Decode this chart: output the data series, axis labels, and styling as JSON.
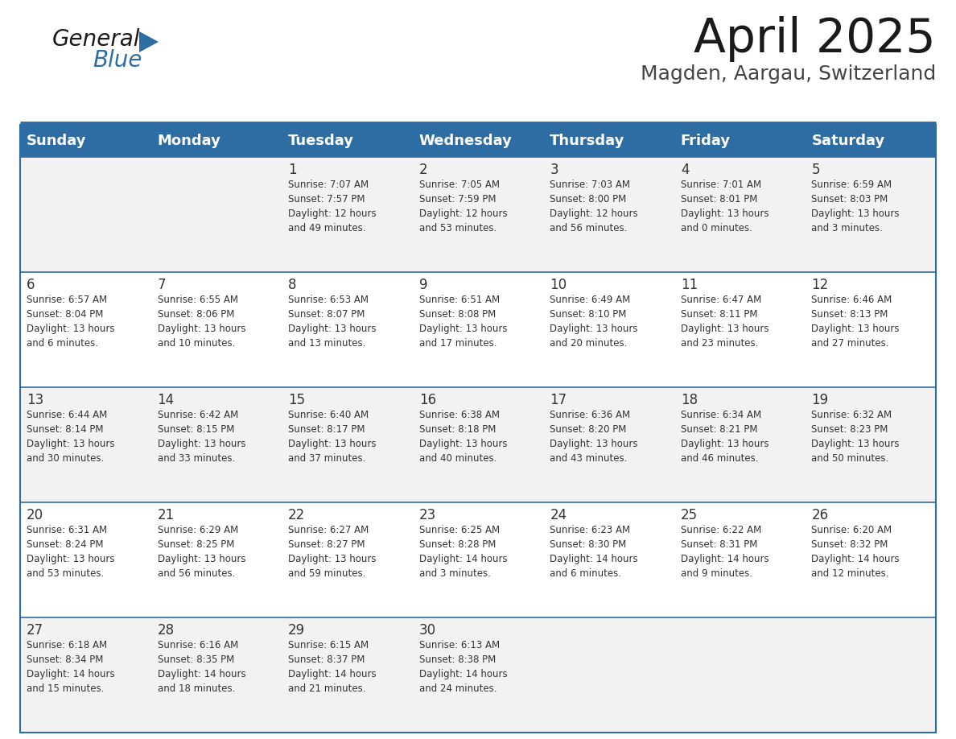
{
  "title": "April 2025",
  "subtitle": "Magden, Aargau, Switzerland",
  "header_bg_color": "#2e6da4",
  "header_text_color": "#ffffff",
  "row_bg_even": "#f2f2f2",
  "row_bg_odd": "#ffffff",
  "text_color": "#333333",
  "border_color": "#2e6da4",
  "day_headers": [
    "Sunday",
    "Monday",
    "Tuesday",
    "Wednesday",
    "Thursday",
    "Friday",
    "Saturday"
  ],
  "calendar_data": [
    [
      {
        "day": "",
        "sunrise": "",
        "sunset": "",
        "daylight": ""
      },
      {
        "day": "",
        "sunrise": "",
        "sunset": "",
        "daylight": ""
      },
      {
        "day": "1",
        "sunrise": "Sunrise: 7:07 AM",
        "sunset": "Sunset: 7:57 PM",
        "daylight": "Daylight: 12 hours\nand 49 minutes."
      },
      {
        "day": "2",
        "sunrise": "Sunrise: 7:05 AM",
        "sunset": "Sunset: 7:59 PM",
        "daylight": "Daylight: 12 hours\nand 53 minutes."
      },
      {
        "day": "3",
        "sunrise": "Sunrise: 7:03 AM",
        "sunset": "Sunset: 8:00 PM",
        "daylight": "Daylight: 12 hours\nand 56 minutes."
      },
      {
        "day": "4",
        "sunrise": "Sunrise: 7:01 AM",
        "sunset": "Sunset: 8:01 PM",
        "daylight": "Daylight: 13 hours\nand 0 minutes."
      },
      {
        "day": "5",
        "sunrise": "Sunrise: 6:59 AM",
        "sunset": "Sunset: 8:03 PM",
        "daylight": "Daylight: 13 hours\nand 3 minutes."
      }
    ],
    [
      {
        "day": "6",
        "sunrise": "Sunrise: 6:57 AM",
        "sunset": "Sunset: 8:04 PM",
        "daylight": "Daylight: 13 hours\nand 6 minutes."
      },
      {
        "day": "7",
        "sunrise": "Sunrise: 6:55 AM",
        "sunset": "Sunset: 8:06 PM",
        "daylight": "Daylight: 13 hours\nand 10 minutes."
      },
      {
        "day": "8",
        "sunrise": "Sunrise: 6:53 AM",
        "sunset": "Sunset: 8:07 PM",
        "daylight": "Daylight: 13 hours\nand 13 minutes."
      },
      {
        "day": "9",
        "sunrise": "Sunrise: 6:51 AM",
        "sunset": "Sunset: 8:08 PM",
        "daylight": "Daylight: 13 hours\nand 17 minutes."
      },
      {
        "day": "10",
        "sunrise": "Sunrise: 6:49 AM",
        "sunset": "Sunset: 8:10 PM",
        "daylight": "Daylight: 13 hours\nand 20 minutes."
      },
      {
        "day": "11",
        "sunrise": "Sunrise: 6:47 AM",
        "sunset": "Sunset: 8:11 PM",
        "daylight": "Daylight: 13 hours\nand 23 minutes."
      },
      {
        "day": "12",
        "sunrise": "Sunrise: 6:46 AM",
        "sunset": "Sunset: 8:13 PM",
        "daylight": "Daylight: 13 hours\nand 27 minutes."
      }
    ],
    [
      {
        "day": "13",
        "sunrise": "Sunrise: 6:44 AM",
        "sunset": "Sunset: 8:14 PM",
        "daylight": "Daylight: 13 hours\nand 30 minutes."
      },
      {
        "day": "14",
        "sunrise": "Sunrise: 6:42 AM",
        "sunset": "Sunset: 8:15 PM",
        "daylight": "Daylight: 13 hours\nand 33 minutes."
      },
      {
        "day": "15",
        "sunrise": "Sunrise: 6:40 AM",
        "sunset": "Sunset: 8:17 PM",
        "daylight": "Daylight: 13 hours\nand 37 minutes."
      },
      {
        "day": "16",
        "sunrise": "Sunrise: 6:38 AM",
        "sunset": "Sunset: 8:18 PM",
        "daylight": "Daylight: 13 hours\nand 40 minutes."
      },
      {
        "day": "17",
        "sunrise": "Sunrise: 6:36 AM",
        "sunset": "Sunset: 8:20 PM",
        "daylight": "Daylight: 13 hours\nand 43 minutes."
      },
      {
        "day": "18",
        "sunrise": "Sunrise: 6:34 AM",
        "sunset": "Sunset: 8:21 PM",
        "daylight": "Daylight: 13 hours\nand 46 minutes."
      },
      {
        "day": "19",
        "sunrise": "Sunrise: 6:32 AM",
        "sunset": "Sunset: 8:23 PM",
        "daylight": "Daylight: 13 hours\nand 50 minutes."
      }
    ],
    [
      {
        "day": "20",
        "sunrise": "Sunrise: 6:31 AM",
        "sunset": "Sunset: 8:24 PM",
        "daylight": "Daylight: 13 hours\nand 53 minutes."
      },
      {
        "day": "21",
        "sunrise": "Sunrise: 6:29 AM",
        "sunset": "Sunset: 8:25 PM",
        "daylight": "Daylight: 13 hours\nand 56 minutes."
      },
      {
        "day": "22",
        "sunrise": "Sunrise: 6:27 AM",
        "sunset": "Sunset: 8:27 PM",
        "daylight": "Daylight: 13 hours\nand 59 minutes."
      },
      {
        "day": "23",
        "sunrise": "Sunrise: 6:25 AM",
        "sunset": "Sunset: 8:28 PM",
        "daylight": "Daylight: 14 hours\nand 3 minutes."
      },
      {
        "day": "24",
        "sunrise": "Sunrise: 6:23 AM",
        "sunset": "Sunset: 8:30 PM",
        "daylight": "Daylight: 14 hours\nand 6 minutes."
      },
      {
        "day": "25",
        "sunrise": "Sunrise: 6:22 AM",
        "sunset": "Sunset: 8:31 PM",
        "daylight": "Daylight: 14 hours\nand 9 minutes."
      },
      {
        "day": "26",
        "sunrise": "Sunrise: 6:20 AM",
        "sunset": "Sunset: 8:32 PM",
        "daylight": "Daylight: 14 hours\nand 12 minutes."
      }
    ],
    [
      {
        "day": "27",
        "sunrise": "Sunrise: 6:18 AM",
        "sunset": "Sunset: 8:34 PM",
        "daylight": "Daylight: 14 hours\nand 15 minutes."
      },
      {
        "day": "28",
        "sunrise": "Sunrise: 6:16 AM",
        "sunset": "Sunset: 8:35 PM",
        "daylight": "Daylight: 14 hours\nand 18 minutes."
      },
      {
        "day": "29",
        "sunrise": "Sunrise: 6:15 AM",
        "sunset": "Sunset: 8:37 PM",
        "daylight": "Daylight: 14 hours\nand 21 minutes."
      },
      {
        "day": "30",
        "sunrise": "Sunrise: 6:13 AM",
        "sunset": "Sunset: 8:38 PM",
        "daylight": "Daylight: 14 hours\nand 24 minutes."
      },
      {
        "day": "",
        "sunrise": "",
        "sunset": "",
        "daylight": ""
      },
      {
        "day": "",
        "sunrise": "",
        "sunset": "",
        "daylight": ""
      },
      {
        "day": "",
        "sunrise": "",
        "sunset": "",
        "daylight": ""
      }
    ]
  ]
}
